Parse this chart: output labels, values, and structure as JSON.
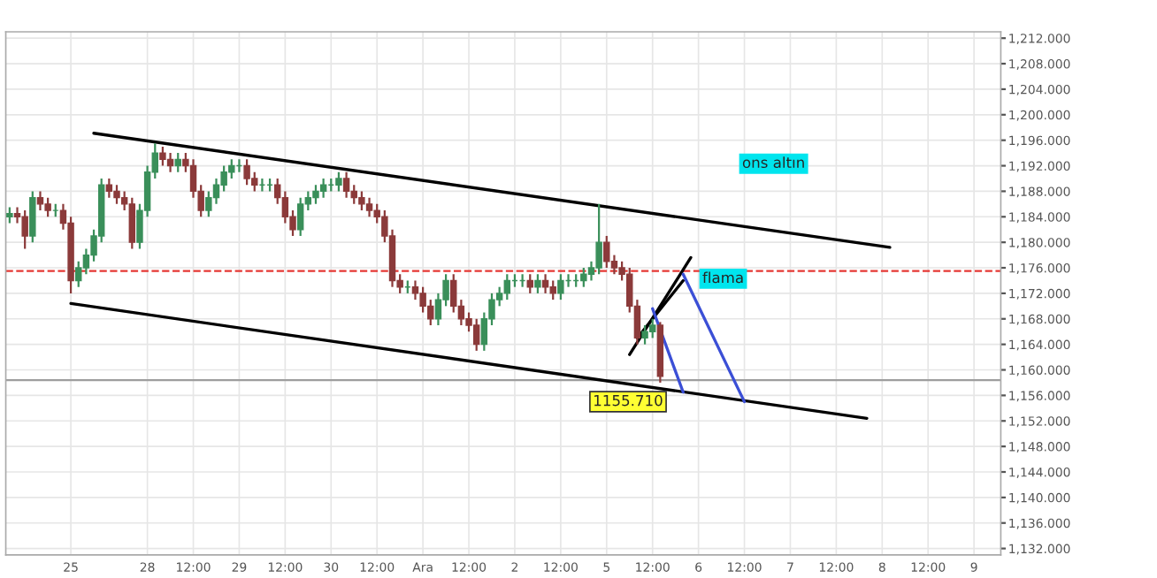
{
  "chart_data": {
    "type": "candlestick",
    "categories": [
      null,
      null,
      null,
      null,
      null,
      null,
      null,
      null,
      "25",
      null,
      null,
      null,
      null,
      null,
      null,
      null,
      null,
      null,
      "28",
      null,
      null,
      null,
      null,
      null,
      "12:00",
      null,
      null,
      null,
      null,
      null,
      "29",
      null,
      null,
      null,
      null,
      null,
      "12:00",
      null,
      null,
      null,
      null,
      null,
      "30",
      null,
      null,
      null,
      null,
      null,
      "12:00",
      null,
      null,
      null,
      null,
      null,
      "Ara",
      null,
      null,
      null,
      null,
      null,
      "12:00",
      null,
      null,
      null,
      null,
      null,
      "2",
      null,
      null,
      null,
      null,
      null,
      "12:00",
      null,
      null,
      null,
      null,
      null,
      "5",
      null,
      null,
      null,
      null,
      null,
      "12:00",
      null,
      null,
      null,
      null,
      null,
      "6",
      null,
      null,
      null,
      null,
      null,
      "12:00",
      null,
      null,
      null,
      null,
      null,
      "7",
      null,
      null,
      null,
      null,
      null,
      "12:00",
      null,
      null,
      null,
      null,
      null,
      "8",
      null,
      null,
      null,
      null,
      null,
      "12:00",
      null,
      null,
      null,
      null,
      null,
      "9",
      null,
      null,
      null
    ],
    "ohlc": [
      [
        1184,
        1185.5,
        1183,
        1184.5
      ],
      [
        1184.5,
        1185.5,
        1183,
        1184
      ],
      [
        1184,
        1185,
        1179,
        1181
      ],
      [
        1181,
        1188,
        1180,
        1187
      ],
      [
        1187,
        1188,
        1185,
        1186
      ],
      [
        1186,
        1187,
        1184,
        1185
      ],
      [
        1185,
        1186,
        1184,
        1185
      ],
      [
        1185,
        1186,
        1182,
        1183
      ],
      [
        1183,
        1184,
        1172,
        1174
      ],
      [
        1174,
        1177,
        1173,
        1176
      ],
      [
        1176,
        1179,
        1175,
        1178
      ],
      [
        1178,
        1182,
        1177,
        1181
      ],
      [
        1181,
        1190,
        1180,
        1189
      ],
      [
        1189,
        1190,
        1187,
        1188
      ],
      [
        1188,
        1189,
        1186,
        1187
      ],
      [
        1187,
        1188,
        1185,
        1186
      ],
      [
        1186,
        1187,
        1179,
        1180
      ],
      [
        1180,
        1186,
        1179,
        1185
      ],
      [
        1185,
        1192,
        1184,
        1191
      ],
      [
        1191,
        1195.5,
        1190,
        1194
      ],
      [
        1194,
        1195,
        1192,
        1193
      ],
      [
        1193,
        1194,
        1191,
        1192
      ],
      [
        1192,
        1194,
        1191,
        1193
      ],
      [
        1193,
        1194,
        1191,
        1192
      ],
      [
        1192,
        1193,
        1187,
        1188
      ],
      [
        1188,
        1189,
        1184,
        1185
      ],
      [
        1185,
        1188,
        1184,
        1187
      ],
      [
        1187,
        1190,
        1186,
        1189
      ],
      [
        1189,
        1192,
        1188,
        1191
      ],
      [
        1191,
        1193,
        1190,
        1192
      ],
      [
        1192,
        1193,
        1191,
        1192
      ],
      [
        1192,
        1193,
        1189,
        1190
      ],
      [
        1190,
        1191,
        1188,
        1189
      ],
      [
        1189,
        1190,
        1188,
        1189
      ],
      [
        1189,
        1190,
        1188,
        1189
      ],
      [
        1189,
        1190,
        1186,
        1187
      ],
      [
        1187,
        1188,
        1183,
        1184
      ],
      [
        1184,
        1185,
        1181,
        1182
      ],
      [
        1182,
        1187,
        1181,
        1186
      ],
      [
        1186,
        1188,
        1185,
        1187
      ],
      [
        1187,
        1189,
        1186,
        1188
      ],
      [
        1188,
        1190,
        1187,
        1189
      ],
      [
        1189,
        1190,
        1188,
        1189
      ],
      [
        1189,
        1191,
        1188,
        1190
      ],
      [
        1190,
        1191,
        1187,
        1188
      ],
      [
        1188,
        1189,
        1186,
        1187
      ],
      [
        1187,
        1188,
        1185,
        1186
      ],
      [
        1186,
        1187,
        1184,
        1185
      ],
      [
        1185,
        1186,
        1183,
        1184
      ],
      [
        1184,
        1185,
        1180,
        1181
      ],
      [
        1181,
        1182,
        1173,
        1174
      ],
      [
        1174,
        1175,
        1172,
        1173
      ],
      [
        1173,
        1174,
        1172,
        1173
      ],
      [
        1173,
        1174,
        1171,
        1172
      ],
      [
        1172,
        1173,
        1169,
        1170
      ],
      [
        1170,
        1171,
        1167,
        1168
      ],
      [
        1168,
        1172,
        1167,
        1171
      ],
      [
        1171,
        1175,
        1170,
        1174
      ],
      [
        1174,
        1175,
        1169,
        1170
      ],
      [
        1170,
        1171,
        1167,
        1168
      ],
      [
        1168,
        1169,
        1166,
        1167
      ],
      [
        1167,
        1168,
        1163,
        1164
      ],
      [
        1164,
        1169,
        1163,
        1168
      ],
      [
        1168,
        1172,
        1167,
        1171
      ],
      [
        1171,
        1173,
        1170,
        1172
      ],
      [
        1172,
        1175,
        1171,
        1174
      ],
      [
        1174,
        1175,
        1173,
        1174
      ],
      [
        1174,
        1175,
        1173,
        1174
      ],
      [
        1174,
        1175,
        1172,
        1173
      ],
      [
        1173,
        1175,
        1172,
        1174
      ],
      [
        1174,
        1175,
        1172,
        1173
      ],
      [
        1173,
        1174,
        1171,
        1172
      ],
      [
        1172,
        1175,
        1171,
        1174
      ],
      [
        1174,
        1175,
        1173,
        1174
      ],
      [
        1174,
        1175,
        1173,
        1174
      ],
      [
        1174,
        1176,
        1173,
        1175
      ],
      [
        1175,
        1177,
        1174,
        1176
      ],
      [
        1176,
        1186,
        1175,
        1180
      ],
      [
        1180,
        1181,
        1176,
        1177
      ],
      [
        1177,
        1178,
        1175,
        1176
      ],
      [
        1176,
        1177,
        1174,
        1175
      ],
      [
        1175,
        1176,
        1169,
        1170
      ],
      [
        1170,
        1171,
        1164,
        1165
      ],
      [
        1165,
        1167,
        1164,
        1166
      ],
      [
        1166,
        1168,
        1165,
        1167
      ],
      [
        1167,
        1167.5,
        1158,
        1159
      ],
      null,
      null,
      null,
      null,
      null,
      null,
      null,
      null,
      null,
      null,
      null,
      null,
      null,
      null,
      null,
      null,
      null,
      null,
      null,
      null,
      null,
      null,
      null,
      null,
      null,
      null,
      null,
      null,
      null,
      null,
      null,
      null,
      null,
      null,
      null,
      null,
      null,
      null,
      null,
      null,
      null,
      null,
      null,
      null
    ],
    "series": [
      {
        "type": "line",
        "color": "#000000",
        "values": [
          null,
          null,
          null,
          null,
          null,
          null,
          null,
          null,
          null,
          null,
          null,
          1197.1,
          null,
          null,
          null,
          null,
          null,
          null,
          null,
          null,
          null,
          null,
          null,
          null,
          null,
          null,
          null,
          null,
          null,
          null,
          null,
          null,
          null,
          null,
          null,
          null,
          null,
          null,
          null,
          null,
          null,
          null,
          null,
          null,
          null,
          null,
          null,
          null,
          null,
          null,
          null,
          null,
          null,
          null,
          null,
          null,
          null,
          null,
          null,
          null,
          null,
          null,
          null,
          null,
          null,
          null,
          null,
          null,
          null,
          null,
          null,
          null,
          null,
          null,
          null,
          null,
          null,
          null,
          null,
          null,
          null,
          null,
          null,
          null,
          null,
          null,
          null,
          null,
          null,
          null,
          null,
          null,
          null,
          null,
          null,
          null,
          null,
          null,
          null,
          null,
          null,
          null,
          null,
          null,
          null,
          null,
          null,
          null,
          null,
          null,
          null,
          null,
          null,
          null,
          null,
          1179.2,
          null,
          null,
          null,
          null,
          null,
          null,
          null,
          null,
          null,
          null,
          null,
          null,
          null,
          null
        ]
      },
      {
        "type": "line",
        "color": "#000000",
        "values": [
          null,
          null,
          null,
          null,
          null,
          null,
          null,
          null,
          1170.4,
          null,
          null,
          null,
          null,
          null,
          null,
          null,
          null,
          null,
          null,
          null,
          null,
          null,
          null,
          null,
          null,
          null,
          null,
          null,
          null,
          null,
          null,
          null,
          null,
          null,
          null,
          null,
          null,
          null,
          null,
          null,
          null,
          null,
          null,
          null,
          null,
          null,
          null,
          null,
          null,
          null,
          null,
          null,
          null,
          null,
          null,
          null,
          null,
          null,
          null,
          null,
          null,
          null,
          null,
          null,
          null,
          null,
          null,
          null,
          null,
          null,
          null,
          null,
          null,
          null,
          null,
          null,
          null,
          null,
          null,
          null,
          null,
          null,
          null,
          null,
          null,
          null,
          null,
          null,
          null,
          null,
          null,
          null,
          null,
          null,
          null,
          null,
          null,
          null,
          null,
          null,
          null,
          null,
          null,
          null,
          null,
          null,
          null,
          null,
          null,
          null,
          null,
          null,
          1152.4,
          null,
          null,
          null,
          null,
          null,
          null,
          null,
          null,
          null,
          null,
          null,
          null,
          null,
          null,
          null,
          null,
          null
        ]
      },
      {
        "type": "line",
        "color": "#000000",
        "values": [
          null,
          null,
          null,
          null,
          null,
          null,
          null,
          null,
          null,
          null,
          null,
          null,
          null,
          null,
          null,
          null,
          null,
          null,
          null,
          null,
          null,
          null,
          null,
          null,
          null,
          null,
          null,
          null,
          null,
          null,
          null,
          null,
          null,
          null,
          null,
          null,
          null,
          null,
          null,
          null,
          null,
          null,
          null,
          null,
          null,
          null,
          null,
          null,
          null,
          null,
          null,
          null,
          null,
          null,
          null,
          null,
          null,
          null,
          null,
          null,
          null,
          null,
          null,
          null,
          null,
          null,
          null,
          null,
          null,
          null,
          null,
          null,
          null,
          null,
          null,
          null,
          null,
          null,
          null,
          null,
          null,
          1162.4,
          null,
          null,
          null,
          null,
          null,
          null,
          null,
          1177.6,
          null,
          null,
          null,
          null,
          null,
          null,
          null,
          null,
          null,
          null,
          null,
          null,
          null,
          null,
          null,
          null,
          null,
          null,
          null,
          null,
          null,
          null,
          null,
          null,
          null,
          null,
          null,
          null,
          null,
          null,
          null,
          null,
          null,
          null,
          null,
          null,
          null,
          null,
          null,
          null
        ]
      },
      {
        "type": "line",
        "color": "#000000",
        "values": [
          null,
          null,
          null,
          null,
          null,
          null,
          null,
          null,
          null,
          null,
          null,
          null,
          null,
          null,
          null,
          null,
          null,
          null,
          null,
          null,
          null,
          null,
          null,
          null,
          null,
          null,
          null,
          null,
          null,
          null,
          null,
          null,
          null,
          null,
          null,
          null,
          null,
          null,
          null,
          null,
          null,
          null,
          null,
          null,
          null,
          null,
          null,
          null,
          null,
          null,
          null,
          null,
          null,
          null,
          null,
          null,
          null,
          null,
          null,
          null,
          null,
          null,
          null,
          null,
          null,
          null,
          null,
          null,
          null,
          null,
          null,
          null,
          null,
          null,
          null,
          null,
          null,
          null,
          null,
          null,
          null,
          null,
          1165,
          null,
          null,
          null,
          null,
          null,
          1174,
          null,
          null,
          null,
          null,
          null,
          null,
          null,
          null,
          null,
          null,
          null,
          null,
          null,
          null,
          null,
          null,
          null,
          null,
          null,
          null,
          null,
          null,
          null,
          null,
          null,
          null,
          null,
          null,
          null,
          null,
          null,
          null,
          null,
          null,
          null,
          null,
          null,
          null,
          null,
          null,
          null
        ]
      },
      {
        "type": "line",
        "color": "#3b4fd6",
        "values": [
          null,
          null,
          null,
          null,
          null,
          null,
          null,
          null,
          null,
          null,
          null,
          null,
          null,
          null,
          null,
          null,
          null,
          null,
          null,
          null,
          null,
          null,
          null,
          null,
          null,
          null,
          null,
          null,
          null,
          null,
          null,
          null,
          null,
          null,
          null,
          null,
          null,
          null,
          null,
          null,
          null,
          null,
          null,
          null,
          null,
          null,
          null,
          null,
          null,
          null,
          null,
          null,
          null,
          null,
          null,
          null,
          null,
          null,
          null,
          null,
          null,
          null,
          null,
          null,
          null,
          null,
          null,
          null,
          null,
          null,
          null,
          null,
          null,
          null,
          null,
          null,
          null,
          null,
          null,
          null,
          null,
          null,
          null,
          null,
          1169.6,
          null,
          null,
          null,
          1156.5,
          null,
          null,
          null,
          null,
          null,
          null,
          null,
          null,
          null,
          null,
          null,
          null,
          null,
          null,
          null,
          null,
          null,
          null,
          null,
          null,
          null,
          null,
          null,
          null,
          null,
          null,
          null,
          null,
          null,
          null,
          null,
          null,
          null,
          null,
          null,
          null,
          null,
          null,
          null,
          null,
          null
        ]
      },
      {
        "type": "line",
        "color": "#3b4fd6",
        "values": [
          null,
          null,
          null,
          null,
          null,
          null,
          null,
          null,
          null,
          null,
          null,
          null,
          null,
          null,
          null,
          null,
          null,
          null,
          null,
          null,
          null,
          null,
          null,
          null,
          null,
          null,
          null,
          null,
          null,
          null,
          null,
          null,
          null,
          null,
          null,
          null,
          null,
          null,
          null,
          null,
          null,
          null,
          null,
          null,
          null,
          null,
          null,
          null,
          null,
          null,
          null,
          null,
          null,
          null,
          null,
          null,
          null,
          null,
          null,
          null,
          null,
          null,
          null,
          null,
          null,
          null,
          null,
          null,
          null,
          null,
          null,
          null,
          null,
          null,
          null,
          null,
          null,
          null,
          null,
          null,
          null,
          null,
          null,
          null,
          null,
          null,
          null,
          null,
          1175,
          null,
          null,
          null,
          null,
          null,
          null,
          null,
          1155,
          null,
          null,
          null,
          null,
          null,
          null,
          null,
          null,
          null,
          null,
          null,
          null,
          null,
          null,
          null,
          null,
          null,
          null,
          null,
          null,
          null,
          null,
          null,
          null,
          null,
          null,
          null,
          null,
          null,
          null,
          null,
          null,
          null
        ]
      }
    ],
    "ylim": [
      1131,
      1213
    ],
    "yticks": [
      {
        "value": 1132,
        "label": "1,132.000"
      },
      {
        "value": 1136,
        "label": "1,136.000"
      },
      {
        "value": 1140,
        "label": "1,140.000"
      },
      {
        "value": 1144,
        "label": "1,144.000"
      },
      {
        "value": 1148,
        "label": "1,148.000"
      },
      {
        "value": 1152,
        "label": "1,152.000"
      },
      {
        "value": 1156,
        "label": "1,156.000"
      },
      {
        "value": 1160,
        "label": "1,160.000"
      },
      {
        "value": 1164,
        "label": "1,164.000"
      },
      {
        "value": 1168,
        "label": "1,168.000"
      },
      {
        "value": 1172,
        "label": "1,172.000"
      },
      {
        "value": 1176,
        "label": "1,176.000"
      },
      {
        "value": 1180,
        "label": "1,180.000"
      },
      {
        "value": 1184,
        "label": "1,184.000"
      },
      {
        "value": 1188,
        "label": "1,188.000"
      },
      {
        "value": 1192,
        "label": "1,192.000"
      },
      {
        "value": 1196,
        "label": "1,196.000"
      },
      {
        "value": 1200,
        "label": "1,200.000"
      },
      {
        "value": 1204,
        "label": "1,204.000"
      },
      {
        "value": 1208,
        "label": "1,208.000"
      },
      {
        "value": 1212,
        "label": "1,212.000"
      }
    ],
    "ref_lines": [
      {
        "axis": "y",
        "value": 1175.5,
        "color": "#e53935",
        "line_style": "dashed"
      },
      {
        "axis": "y",
        "value": 1158.4,
        "color": "#9e9e9e",
        "line_style": "solid"
      }
    ],
    "annotations": [
      "ons altın",
      "flama",
      "1155.710"
    ],
    "grid": true
  }
}
